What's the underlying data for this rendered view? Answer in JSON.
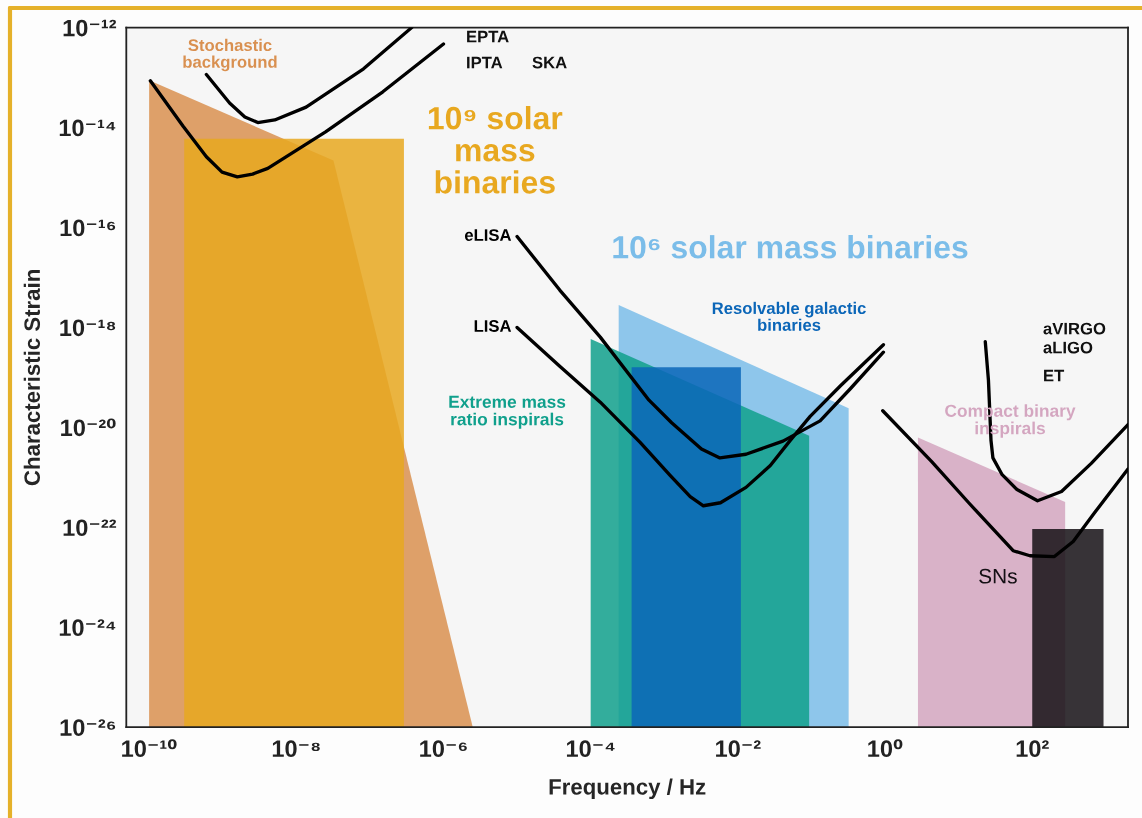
{
  "chart_data": {
    "type": "area",
    "xlabel": "Frequency / Hz",
    "ylabel": "Characteristic Strain",
    "log": "xy",
    "xlim": [
      4.9e-11,
      2000.0
    ],
    "ylim": [
      1e-26,
      1e-12
    ],
    "xticks": [
      {
        "value": 1e-10,
        "label": "10⁻¹⁰"
      },
      {
        "value": 1e-08,
        "label": "10⁻⁸"
      },
      {
        "value": 1e-06,
        "label": "10⁻⁶"
      },
      {
        "value": 0.0001,
        "label": "10⁻⁴"
      },
      {
        "value": 0.01,
        "label": "10⁻²"
      },
      {
        "value": 1,
        "label": "10⁰"
      },
      {
        "value": 100,
        "label": "10²"
      }
    ],
    "yticks": [
      {
        "value": 1e-26,
        "label": "10⁻²⁶"
      },
      {
        "value": 1e-24,
        "label": "10⁻²⁴"
      },
      {
        "value": 1e-22,
        "label": "10⁻²²"
      },
      {
        "value": 1e-20,
        "label": "10⁻²⁰"
      },
      {
        "value": 1e-18,
        "label": "10⁻¹⁸"
      },
      {
        "value": 1e-16,
        "label": "10⁻¹⁶"
      },
      {
        "value": 1e-14,
        "label": "10⁻¹⁴"
      },
      {
        "value": 1e-12,
        "label": "10⁻¹²"
      }
    ],
    "series": [
      {
        "name": "Stochastic\nbackground",
        "color": "#d99050",
        "x": [
          1e-10,
          3.2e-08,
          2.5e-06
        ],
        "values": [
          8.8e-14,
          2.2e-15,
          1e-26
        ]
      },
      {
        "name": "10⁹ solar\nmass\nbinaries",
        "color": "#e8a820",
        "x": [
          3e-10,
          2.9e-07
        ],
        "values": [
          6e-15,
          6e-15
        ]
      },
      {
        "name": "10⁶ solar mass binaries",
        "color": "#7bbde9",
        "x": [
          0.00024,
          0.32
        ],
        "values": [
          2.8e-18,
          2.4e-20
        ]
      },
      {
        "name": "Extreme mass\nratio inspirals",
        "color": "#10a08c",
        "x": [
          0.0001,
          0.093
        ],
        "values": [
          5.9e-19,
          6.8e-21
        ]
      },
      {
        "name": "Resolvable galactic\nbinaries",
        "color": "#0b66b8",
        "x": [
          0.00036,
          0.011
        ],
        "values": [
          1.6e-19,
          1.6e-19
        ]
      },
      {
        "name": "Compact binary\ninspirals",
        "color": "#d4a6c0",
        "x": [
          2.8,
          280
        ],
        "values": [
          6.3e-21,
          3.2e-22
        ]
      },
      {
        "name": "SNs",
        "color": "#151015",
        "x": [
          100,
          930
        ],
        "values": [
          9.3e-23,
          9.3e-23
        ]
      },
      {
        "type": "line",
        "color": "#000000",
        "x": [
          6e-10,
          1.24e-09,
          2e-09,
          3e-09,
          5.1e-09,
          1.36e-08,
          8.2e-08,
          3.7e-07
        ],
        "values": [
          1.15e-13,
          3.1e-14,
          1.63e-14,
          1.26e-14,
          1.42e-14,
          2.56e-14,
          1.5e-13,
          1e-12
        ]
      },
      {
        "type": "line",
        "color": "#000000",
        "x": [
          1.04e-10,
          2.9e-10,
          6e-10,
          9.8e-10,
          1.58e-09,
          2.55e-09,
          4.1e-09,
          2.5e-08,
          1.5e-07,
          1e-06
        ],
        "values": [
          8.6e-14,
          1.06e-14,
          2.6e-15,
          1.28e-15,
          1.03e-15,
          1.17e-15,
          1.52e-15,
          8.2e-15,
          5.2e-14,
          4.7e-13
        ]
      },
      {
        "type": "line",
        "name": "eLISA",
        "color": "#000000",
        "x": [
          1e-05,
          3.8e-05,
          0.000135,
          0.00062,
          0.00126,
          0.0032,
          0.0057,
          0.0129,
          0.041,
          0.131,
          0.34,
          0.95
        ],
        "values": [
          6.6e-17,
          5.6e-18,
          6.4e-19,
          3.5e-20,
          1.24e-20,
          3.7e-21,
          2.45e-21,
          2.9e-21,
          5.3e-21,
          1.35e-20,
          6e-20,
          3.2e-19
        ]
      },
      {
        "type": "line",
        "name": "LISA",
        "color": "#000000",
        "x": [
          1e-05,
          3.8e-05,
          0.000135,
          0.00047,
          0.0012,
          0.00225,
          0.0034,
          0.0058,
          0.0129,
          0.0276,
          0.0515,
          0.096,
          0.25,
          0.95
        ],
        "values": [
          1e-18,
          1.67e-19,
          3.2e-20,
          5e-21,
          1.09e-21,
          4.1e-22,
          2.7e-22,
          3.1e-22,
          6.3e-22,
          1.73e-21,
          5.5e-21,
          1.66e-20,
          6.9e-20,
          4.5e-19
        ]
      },
      {
        "type": "line",
        "color": "#000000",
        "x": [
          23,
          25.4,
          27.5,
          29.2,
          39,
          62,
          118,
          250,
          634,
          2000.0
        ],
        "values": [
          5.2e-19,
          8.7e-20,
          5.5e-21,
          2.45e-21,
          1.13e-21,
          5.7e-22,
          3.4e-22,
          5.2e-22,
          1.9e-21,
          1.14e-20
        ]
      },
      {
        "type": "line",
        "color": "#000000",
        "x": [
          0.93,
          4.3,
          13.7,
          55,
          93,
          200,
          360,
          710,
          2000.0
        ],
        "values": [
          2.15e-20,
          2.07e-21,
          3.1e-22,
          3.4e-23,
          2.7e-23,
          2.6e-23,
          5.2e-23,
          2e-22,
          1.46e-21
        ]
      }
    ],
    "annotations": [
      "EPTA",
      "IPTA",
      "SKA",
      "aVIRGO",
      "aLIGO",
      "ET"
    ]
  }
}
